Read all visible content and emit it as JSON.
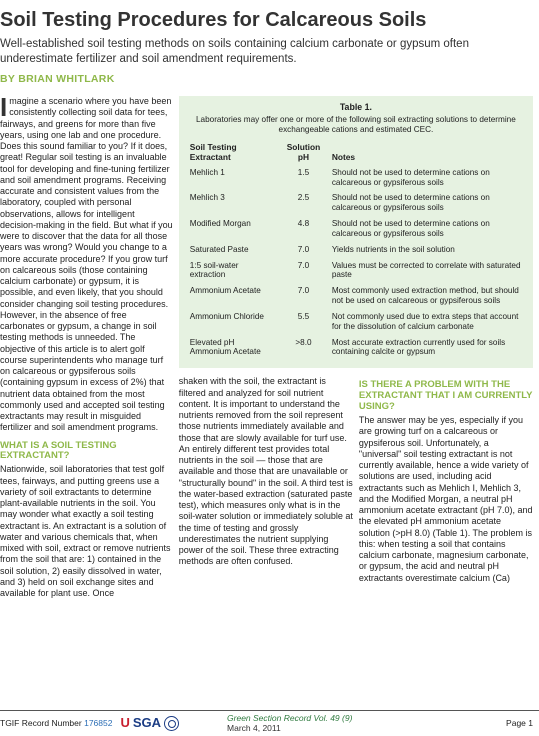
{
  "header": {
    "title": "Soil Testing Procedures for Calcareous Soils",
    "subtitle": "Well-established soil testing methods on soils containing calcium carbonate or gypsum often underestimate fertilizer and soil amendment requirements.",
    "by_label": "BY",
    "author": "BRIAN WHITLARK"
  },
  "col1": {
    "p1": "Imagine a scenario where you have been consistently collecting soil data for tees, fairways, and greens for more than five years, using one lab and one procedure. Does this sound familiar to you? If it does, great! Regular soil testing is an invaluable tool for developing and fine-tuning fertilizer and soil amendment programs. Receiving accurate and consistent values from the laboratory, coupled with personal observations, allows for intelligent decision-making in the field. But what if you were to discover that the data for all those years was wrong? Would you change to a more accurate procedure? If you grow turf on calcareous soils (those containing calcium carbonate) or gypsum, it is possible, and even likely, that you should consider changing soil testing procedures. However, in the absence of free carbonates or gypsum, a change in soil testing methods is unneeded. The objective of this article is to alert golf course superintendents who manage turf on calcareous or gypsiferous soils (containing gypsum in excess of 2%) that nutrient data obtained from the most commonly used and accepted soil testing extractants may result in misguided fertilizer and soil amendment programs.",
    "h1": "WHAT IS A SOIL TESTING EXTRACTANT?",
    "p2": "Nationwide, soil laboratories that test golf tees, fairways, and putting greens use a variety of soil extractants to determine plant-available nutrients in the soil. You may wonder what exactly a soil testing extractant is. An extractant is a solution of water and various chemicals that, when mixed with soil, extract or remove nutrients from the soil that are: 1) contained in the soil solution, 2) easily dissolved in water, and 3) held on soil exchange sites and available for plant use. Once"
  },
  "table": {
    "title": "Table 1.",
    "caption": "Laboratories may offer one or more of the following soil extracting solutions to determine exchangeable cations and estimated CEC.",
    "headers": [
      "Soil Testing Extractant",
      "Solution pH",
      "Notes"
    ],
    "rows": [
      [
        "Mehlich 1",
        "1.5",
        "Should not be used to determine cations on calcareous or gypsiferous soils"
      ],
      [
        "Mehlich 3",
        "2.5",
        "Should not be used to determine cations on calcareous or gypsiferous soils"
      ],
      [
        "Modified Morgan",
        "4.8",
        "Should not be used to determine cations on calcareous or gypsiferous soils"
      ],
      [
        "Saturated Paste",
        "7.0",
        "Yields nutrients in the soil solution"
      ],
      [
        "1:5 soil-water extraction",
        "7.0",
        "Values must be corrected to correlate with saturated paste"
      ],
      [
        "Ammonium Acetate",
        "7.0",
        "Most commonly used extraction method, but should not be used on calcareous or gypsiferous soils"
      ],
      [
        "Ammonium Chloride",
        "5.5",
        "Not commonly used due to extra steps that account for the dissolution of calcium carbonate"
      ],
      [
        "Elevated pH Ammonium Acetate",
        ">8.0",
        "Most accurate extraction currently used for soils containing calcite or gypsum"
      ]
    ]
  },
  "lower": {
    "left": "shaken with the soil, the extractant is filtered and analyzed for soil nutrient content. It is important to understand the nutrients removed from the soil represent those nutrients immediately available and those that are slowly available for turf use. An entirely different test provides total nutrients in the soil — those that are available and those that are unavailable or \"structurally bound\" in the soil. A third test is the water-based extraction (saturated paste test), which measures only what is in the soil-water solution or immediately soluble at the time of testing and grossly underestimates the nutrient supplying power of the soil. These three extracting methods are often confused.",
    "right_h": "IS THERE A PROBLEM WITH THE EXTRACTANT THAT I AM CURRENTLY USING?",
    "right_p": "The answer may be yes, especially if you are growing turf on a calcareous or gypsiferous soil. Unfortunately, a \"universal\" soil testing extractant is not currently available, hence a wide variety of solutions are used, including acid extractants such as Mehlich I, Mehlich 3, and the Modified Morgan, a neutral pH ammonium acetate extractant (pH 7.0), and the elevated pH ammonium acetate solution (>pH 8.0) (Table 1). The problem is this: when testing a soil that contains calcium carbonate, magnesium carbonate, or gypsum, the acid and neutral pH extractants overestimate calcium (Ca)"
  },
  "footer": {
    "tgif_label": "TGIF Record Number",
    "tgif_number": "176852",
    "pub": "Green Section Record",
    "vol": "Vol. 49 (9)",
    "date": "March 4, 2011",
    "page": "Page 1"
  },
  "colors": {
    "accent_green": "#8fb84a",
    "table_bg": "#e6f2e1",
    "link_blue": "#2a6db5",
    "usga_red": "#c8202f",
    "usga_blue": "#1b3c84"
  }
}
